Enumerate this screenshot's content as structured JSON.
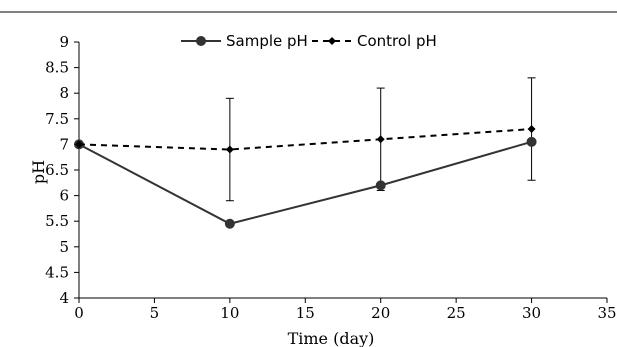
{
  "chart_data": {
    "type": "line",
    "title": "",
    "xlabel": "Time (day)",
    "ylabel": "pH",
    "xlim": [
      0,
      35
    ],
    "ylim": [
      4,
      9
    ],
    "x_ticks": [
      0,
      5,
      10,
      15,
      20,
      25,
      30,
      35
    ],
    "y_ticks": [
      4,
      4.5,
      5,
      5.5,
      6,
      6.5,
      7,
      7.5,
      8,
      8.5,
      9
    ],
    "x_tick_labels": [
      "0",
      "5",
      "10",
      "15",
      "20",
      "25",
      "30",
      "35"
    ],
    "y_tick_labels": [
      "4",
      "4.5",
      "5",
      "5.5",
      "6",
      "6.5",
      "7",
      "7.5",
      "8",
      "8.5",
      "9"
    ],
    "grid": false,
    "legend_position": "top",
    "series": [
      {
        "name": "Sample pH",
        "style": "solid",
        "marker": "circle",
        "color": "#333333",
        "x": [
          0,
          10,
          20,
          30
        ],
        "y": [
          7.0,
          5.45,
          6.2,
          7.05
        ],
        "err": [
          0,
          0,
          0,
          0
        ]
      },
      {
        "name": "Control pH",
        "style": "dashed",
        "marker": "diamond",
        "color": "#000000",
        "x": [
          0,
          10,
          20,
          30
        ],
        "y": [
          7.0,
          6.9,
          7.1,
          7.3
        ],
        "err": [
          0,
          1.0,
          1.0,
          1.0
        ]
      }
    ]
  }
}
